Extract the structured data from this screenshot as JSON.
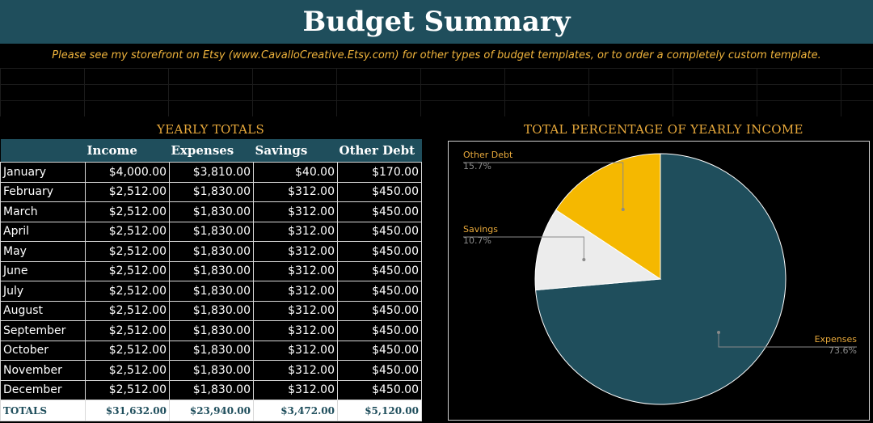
{
  "header": {
    "title": "Budget Summary",
    "notice": "Please see my storefront on Etsy (www.CavalloCreative.Etsy.com) for other types of budget templates, or to order a completely custom template."
  },
  "yearly_totals": {
    "title": "YEARLY TOTALS",
    "columns": [
      "",
      "Income",
      "Expenses",
      "Savings",
      "Other Debt"
    ],
    "rows": [
      {
        "month": "January",
        "income": "$4,000.00",
        "expenses": "$3,810.00",
        "savings": "$40.00",
        "other_debt": "$170.00"
      },
      {
        "month": "February",
        "income": "$2,512.00",
        "expenses": "$1,830.00",
        "savings": "$312.00",
        "other_debt": "$450.00"
      },
      {
        "month": "March",
        "income": "$2,512.00",
        "expenses": "$1,830.00",
        "savings": "$312.00",
        "other_debt": "$450.00"
      },
      {
        "month": "April",
        "income": "$2,512.00",
        "expenses": "$1,830.00",
        "savings": "$312.00",
        "other_debt": "$450.00"
      },
      {
        "month": "May",
        "income": "$2,512.00",
        "expenses": "$1,830.00",
        "savings": "$312.00",
        "other_debt": "$450.00"
      },
      {
        "month": "June",
        "income": "$2,512.00",
        "expenses": "$1,830.00",
        "savings": "$312.00",
        "other_debt": "$450.00"
      },
      {
        "month": "July",
        "income": "$2,512.00",
        "expenses": "$1,830.00",
        "savings": "$312.00",
        "other_debt": "$450.00"
      },
      {
        "month": "August",
        "income": "$2,512.00",
        "expenses": "$1,830.00",
        "savings": "$312.00",
        "other_debt": "$450.00"
      },
      {
        "month": "September",
        "income": "$2,512.00",
        "expenses": "$1,830.00",
        "savings": "$312.00",
        "other_debt": "$450.00"
      },
      {
        "month": "October",
        "income": "$2,512.00",
        "expenses": "$1,830.00",
        "savings": "$312.00",
        "other_debt": "$450.00"
      },
      {
        "month": "November",
        "income": "$2,512.00",
        "expenses": "$1,830.00",
        "savings": "$312.00",
        "other_debt": "$450.00"
      },
      {
        "month": "December",
        "income": "$2,512.00",
        "expenses": "$1,830.00",
        "savings": "$312.00",
        "other_debt": "$450.00"
      }
    ],
    "totals": {
      "label": "TOTALS",
      "income": "$31,632.00",
      "expenses": "$23,940.00",
      "savings": "$3,472.00",
      "other_debt": "$5,120.00"
    }
  },
  "colors": {
    "teal": "#1f4e5c",
    "gold": "#f5b800",
    "label_gold": "#e8a93b",
    "light_gray": "#ececec"
  },
  "chart_data": {
    "type": "pie",
    "title": "TOTAL PERCENTAGE OF YEARLY INCOME",
    "slices": [
      {
        "label": "Expenses",
        "value": 73.6,
        "display": "73.6%",
        "color": "#1f4e5c"
      },
      {
        "label": "Savings",
        "value": 10.7,
        "display": "10.7%",
        "color": "#ececec"
      },
      {
        "label": "Other Debt",
        "value": 15.7,
        "display": "15.7%",
        "color": "#f5b800"
      }
    ]
  }
}
